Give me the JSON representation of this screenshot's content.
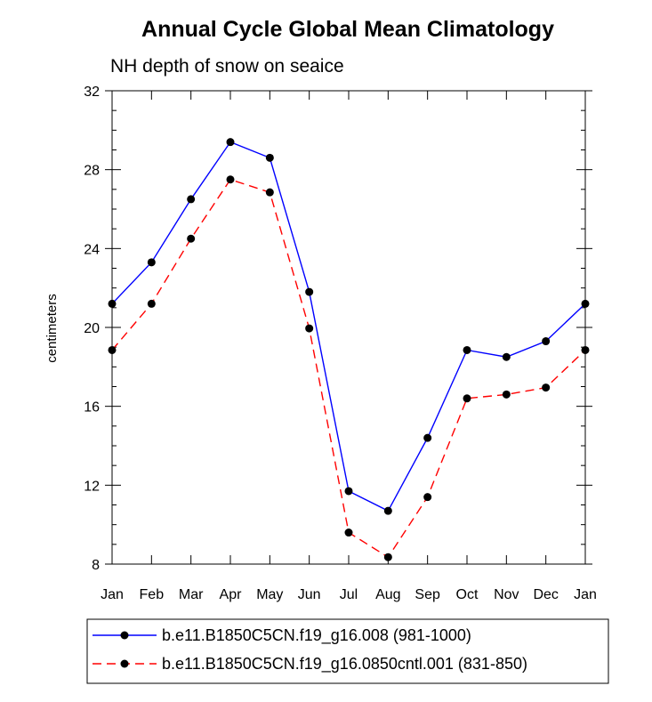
{
  "chart_data": {
    "type": "line",
    "title": "Annual Cycle Global Mean Climatology",
    "subtitle": "NH depth of snow on seaice",
    "xlabel": "",
    "ylabel": "centimeters",
    "categories": [
      "Jan",
      "Feb",
      "Mar",
      "Apr",
      "May",
      "Jun",
      "Jul",
      "Aug",
      "Sep",
      "Oct",
      "Nov",
      "Dec",
      "Jan"
    ],
    "ylim": [
      8,
      32
    ],
    "yticks": [
      8,
      12,
      16,
      20,
      24,
      28,
      32
    ],
    "ytick_labels": [
      "8",
      "12",
      "16",
      "20",
      "24",
      "28",
      "32"
    ],
    "series": [
      {
        "name": "b.e11.B1850C5CN.f19_g16.008 (981-1000)",
        "color": "#0000ff",
        "dash": "solid",
        "values": [
          21.2,
          23.3,
          26.5,
          29.4,
          28.6,
          21.8,
          11.7,
          10.7,
          14.4,
          18.85,
          18.5,
          19.3,
          21.2
        ]
      },
      {
        "name": "b.e11.B1850C5CN.f19_g16.0850cntl.001 (831-850)",
        "color": "#ff0000",
        "dash": "dashed",
        "values": [
          18.85,
          21.2,
          24.5,
          27.5,
          26.85,
          19.95,
          9.6,
          8.35,
          11.4,
          16.4,
          16.6,
          16.95,
          18.85
        ]
      }
    ],
    "legend_position": "bottom"
  }
}
